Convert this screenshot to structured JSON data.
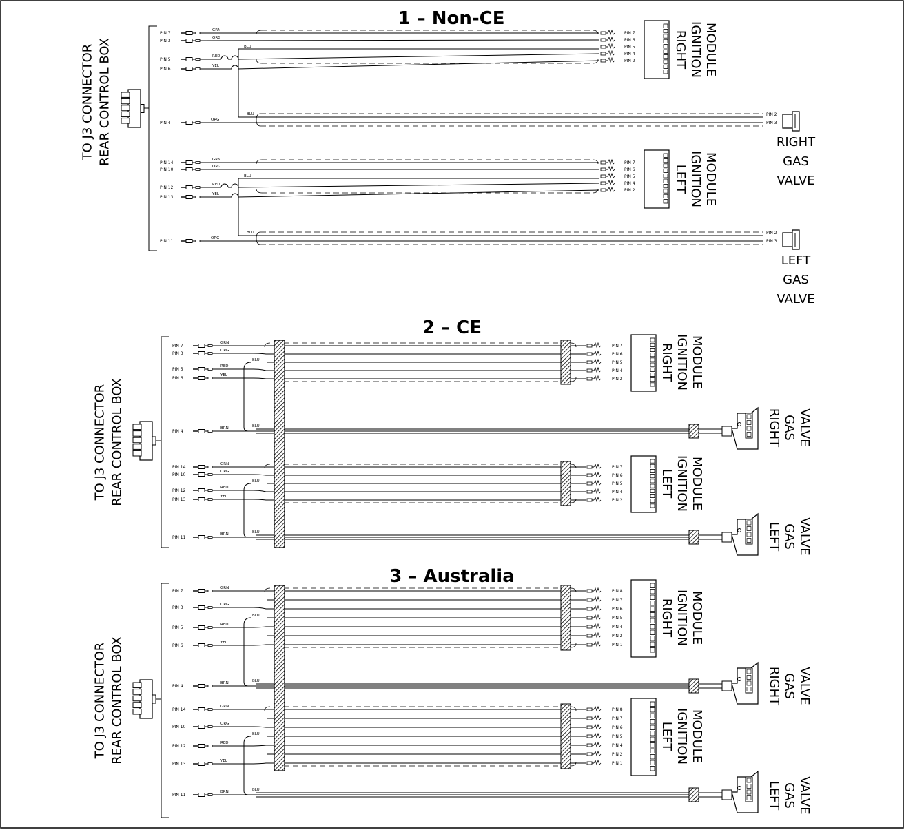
{
  "sections": [
    {
      "title": "1 – Non-CE",
      "harness_label": [
        "TO J3 CONNECTOR",
        "REAR CONTROL BOX"
      ],
      "top_module": {
        "label": [
          "RIGHT",
          "IGNITION",
          "MODULE"
        ],
        "left_pins": [
          "PIN 7",
          "PIN 3",
          "PIN 5",
          "PIN 6"
        ],
        "wire_colors": [
          "GRN",
          "ORG",
          "RED",
          "YEL"
        ],
        "jumper": "BLU",
        "right_pins": [
          "PIN 7",
          "PIN 6",
          "PIN 5",
          "PIN 4",
          "PIN 2"
        ]
      },
      "top_valve": {
        "label": [
          "RIGHT",
          "GAS",
          "VALVE"
        ],
        "left_pin": "PIN 4",
        "wire_colors": [
          "BLU",
          "ORG"
        ],
        "right_pins": [
          "PIN 2",
          "PIN 3"
        ]
      },
      "bottom_module": {
        "label": [
          "LEFT",
          "IGNITION",
          "MODULE"
        ],
        "left_pins": [
          "PIN 14",
          "PIN 10",
          "PIN 12",
          "PIN 13"
        ],
        "wire_colors": [
          "GRN",
          "ORG",
          "RED",
          "YEL"
        ],
        "jumper": "BLU",
        "right_pins": [
          "PIN 7",
          "PIN 6",
          "PIN 5",
          "PIN 4",
          "PIN 2"
        ]
      },
      "bottom_valve": {
        "label": [
          "LEFT",
          "GAS",
          "VALVE"
        ],
        "left_pin": "PIN 11",
        "wire_colors": [
          "BLU",
          "ORG"
        ],
        "right_pins": [
          "PIN 2",
          "PIN 3"
        ]
      }
    },
    {
      "title": "2 – CE",
      "harness_label": [
        "TO J3 CONNECTOR",
        "REAR CONTROL BOX"
      ],
      "top_module": {
        "label": [
          "RIGHT",
          "IGNITION",
          "MODULE"
        ],
        "left_pins": [
          "PIN 7",
          "PIN 3",
          "PIN 5",
          "PIN 6"
        ],
        "wire_colors": [
          "GRN",
          "ORG",
          "RED",
          "YEL"
        ],
        "jumper": "BLU",
        "right_pins": [
          "PIN 7",
          "PIN 6",
          "PIN 5",
          "PIN 4",
          "PIN 2"
        ]
      },
      "top_valve": {
        "label": [
          "RIGHT",
          "GAS",
          "VALVE"
        ],
        "left_pin": "PIN 4",
        "wire_colors": [
          "BRN",
          "BLU"
        ]
      },
      "bottom_module": {
        "label": [
          "LEFT",
          "IGNITION",
          "MODULE"
        ],
        "left_pins": [
          "PIN 14",
          "PIN 10",
          "PIN 12",
          "PIN 13"
        ],
        "wire_colors": [
          "GRN",
          "ORG",
          "RED",
          "YEL"
        ],
        "jumper": "BLU",
        "right_pins": [
          "PIN 7",
          "PIN 6",
          "PIN 5",
          "PIN 4",
          "PIN 2"
        ]
      },
      "bottom_valve": {
        "label": [
          "LEFT",
          "GAS",
          "VALVE"
        ],
        "left_pin": "PIN 11",
        "wire_colors": [
          "BRN",
          "BLU"
        ]
      }
    },
    {
      "title": "3 – Australia",
      "harness_label": [
        "TO J3 CONNECTOR",
        "REAR CONTROL BOX"
      ],
      "top_module": {
        "label": [
          "RIGHT",
          "IGNITION",
          "MODULE"
        ],
        "left_pins": [
          "PIN 7",
          "PIN 3",
          "PIN 5",
          "PIN 6"
        ],
        "wire_colors": [
          "GRN",
          "ORG",
          "RED",
          "YEL"
        ],
        "jumper": "BLU",
        "right_pins": [
          "PIN 8",
          "PIN 7",
          "PIN 6",
          "PIN 5",
          "PIN 4",
          "PIN 2",
          "PIN 1"
        ]
      },
      "top_valve": {
        "label": [
          "RIGHT",
          "GAS",
          "VALVE"
        ],
        "left_pin": "PIN 4",
        "wire_colors": [
          "BRN",
          "BLU"
        ]
      },
      "bottom_module": {
        "label": [
          "LEFT",
          "IGNITION",
          "MODULE"
        ],
        "left_pins": [
          "PIN 14",
          "PIN 10",
          "PIN 12",
          "PIN 13"
        ],
        "wire_colors": [
          "GRN",
          "ORG",
          "RED",
          "YEL"
        ],
        "jumper": "BLU",
        "right_pins": [
          "PIN 8",
          "PIN 7",
          "PIN 6",
          "PIN 5",
          "PIN 4",
          "PIN 2",
          "PIN 1"
        ]
      },
      "bottom_valve": {
        "label": [
          "LEFT",
          "GAS",
          "VALVE"
        ],
        "left_pin": "PIN 11",
        "wire_colors": [
          "BRN",
          "BLU"
        ]
      }
    }
  ]
}
